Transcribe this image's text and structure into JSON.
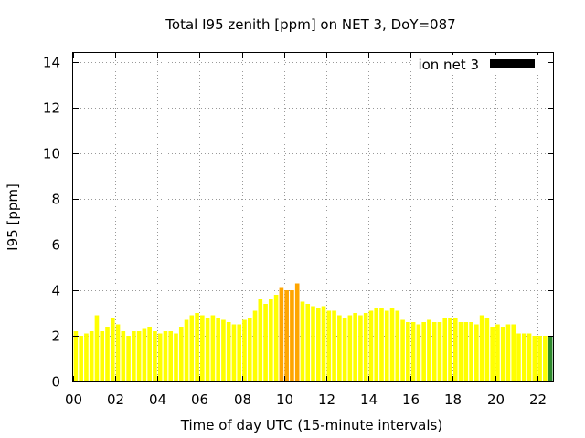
{
  "chart_data": {
    "type": "bar",
    "title": "Total I95 zenith [ppm] on NET 3, DoY=087",
    "xlabel": "Time of day UTC (15-minute intervals)",
    "ylabel": "I95 [ppm]",
    "xlim": [
      0,
      22.75
    ],
    "ylim": [
      0,
      14.4
    ],
    "x_ticks": [
      "00",
      "02",
      "04",
      "06",
      "08",
      "10",
      "12",
      "14",
      "16",
      "18",
      "20",
      "22"
    ],
    "y_ticks": [
      "0",
      "2",
      "4",
      "6",
      "8",
      "10",
      "12",
      "14"
    ],
    "grid": true,
    "legend_position": "top-right",
    "legend": [
      {
        "label": "ion net 3",
        "color": "#000000"
      }
    ],
    "bar_interval_hours": 0.25,
    "values": [
      2.2,
      2.0,
      2.1,
      2.2,
      2.9,
      2.2,
      2.4,
      2.8,
      2.5,
      2.2,
      2.0,
      2.2,
      2.2,
      2.3,
      2.4,
      2.2,
      2.1,
      2.2,
      2.2,
      2.1,
      2.4,
      2.7,
      2.9,
      3.0,
      2.9,
      2.8,
      2.9,
      2.8,
      2.7,
      2.6,
      2.5,
      2.5,
      2.7,
      2.8,
      3.1,
      3.6,
      3.4,
      3.6,
      3.8,
      4.1,
      4.0,
      4.0,
      4.3,
      3.5,
      3.4,
      3.3,
      3.2,
      3.3,
      3.1,
      3.1,
      2.9,
      2.8,
      2.9,
      3.0,
      2.9,
      3.0,
      3.1,
      3.2,
      3.2,
      3.1,
      3.2,
      3.1,
      2.7,
      2.6,
      2.6,
      2.5,
      2.6,
      2.7,
      2.6,
      2.6,
      2.8,
      2.8,
      2.8,
      2.6,
      2.6,
      2.6,
      2.5,
      2.9,
      2.8,
      2.4,
      2.5,
      2.4,
      2.5,
      2.5,
      2.1,
      2.1,
      2.1,
      2.0,
      2.0,
      2.0,
      2.0
    ],
    "colors": {
      "low": "#ffff00",
      "mid": "#ffa500",
      "high": "#2e8b2e",
      "legend_swatch": "#000000",
      "grid": "#999999"
    },
    "color_thresholds": {
      "mid": 4.0
    },
    "last_bar_color": "high"
  }
}
